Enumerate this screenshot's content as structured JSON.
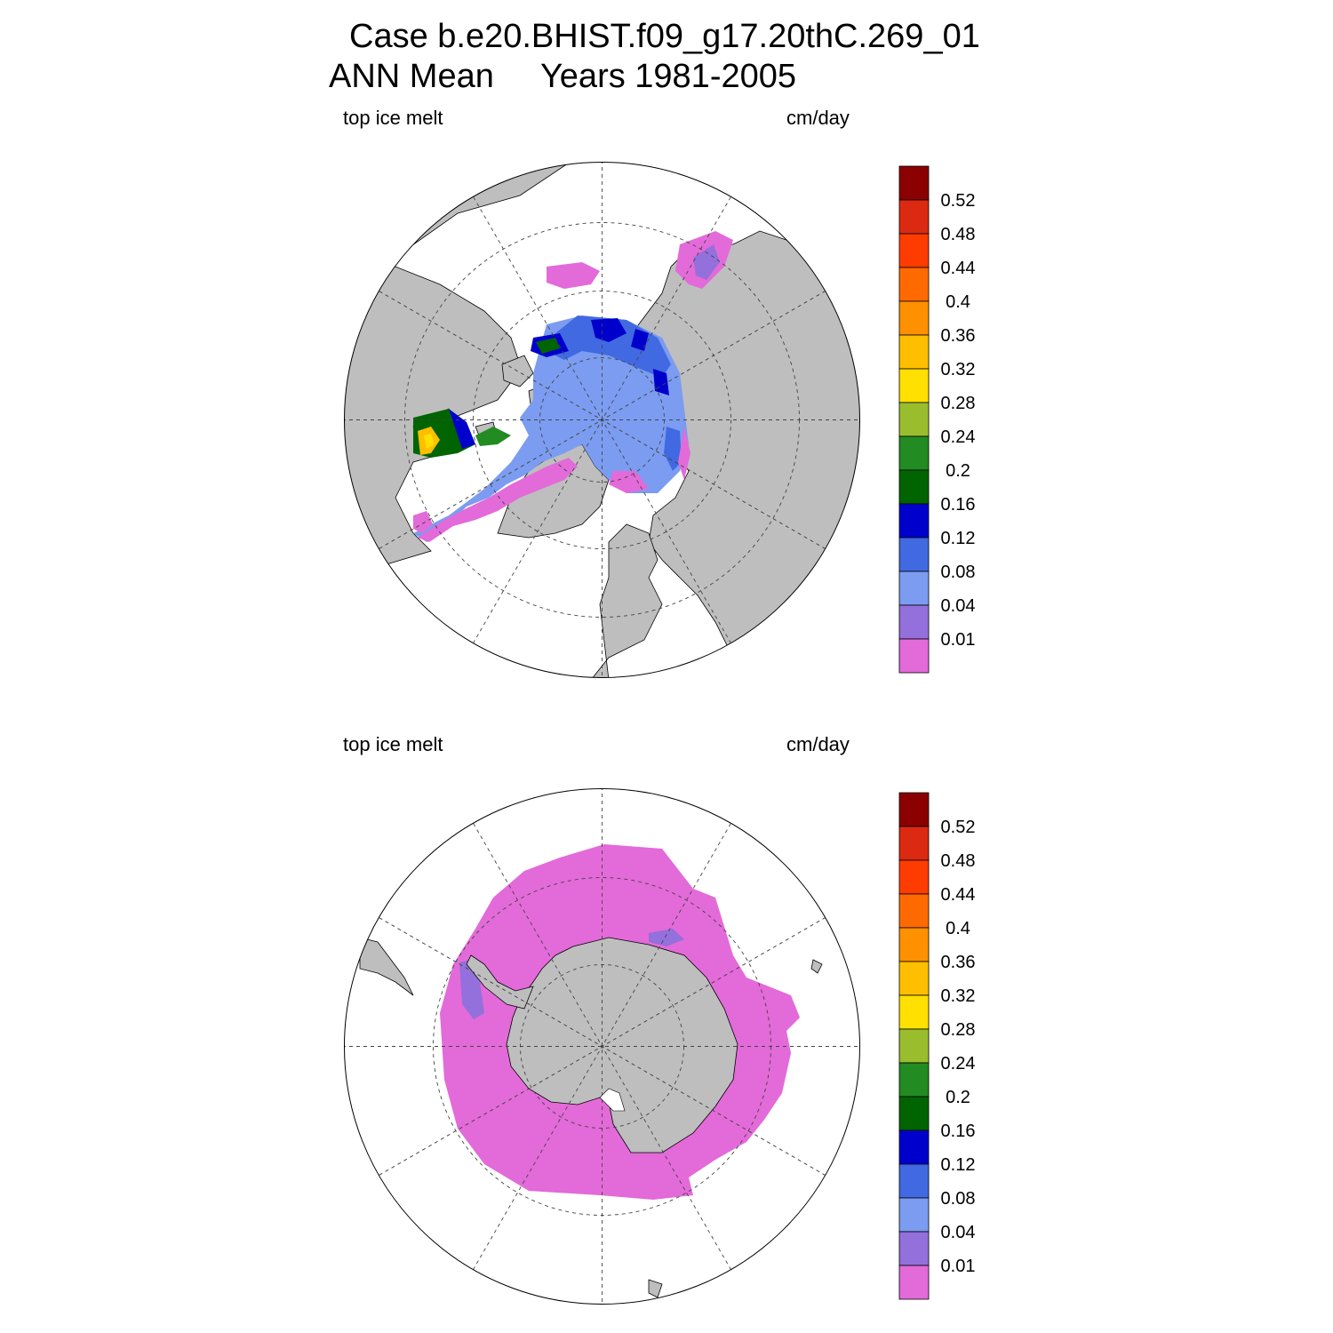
{
  "title": {
    "line1": "Case b.e20.BHIST.f09_g17.20thC.269_01",
    "line2": "ANN Mean     Years 1981-2005"
  },
  "colorbar": {
    "levels": [
      "0.52",
      "0.48",
      "0.44",
      "0.4",
      "0.36",
      "0.32",
      "0.28",
      "0.24",
      "0.2",
      "0.16",
      "0.12",
      "0.08",
      "0.04",
      "0.01"
    ],
    "colors": [
      "#8b0000",
      "#dc2a12",
      "#ff3c00",
      "#ff6a00",
      "#ff9000",
      "#ffbf00",
      "#ffe000",
      "#9abd2e",
      "#228b22",
      "#006400",
      "#0000cd",
      "#4169e1",
      "#7b9cf0",
      "#9370db",
      "#e36ad9"
    ]
  },
  "colors": {
    "land": "#bebebe",
    "ocean": "#ffffff",
    "grid": "#444444"
  },
  "panels": [
    {
      "id": "north",
      "variable": "top ice melt",
      "units": "cm/day",
      "hemisphere": "Northern Hemisphere polar stereographic"
    },
    {
      "id": "south",
      "variable": "top ice melt",
      "units": "cm/day",
      "hemisphere": "Southern Hemisphere polar stereographic"
    }
  ]
}
